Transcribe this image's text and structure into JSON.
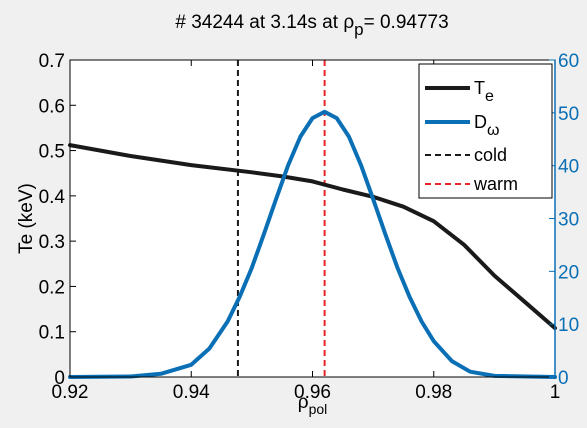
{
  "chart_data": {
    "type": "line",
    "title_parts": {
      "prefix": "# 34244 at 3.14s at  ",
      "symbol": "ρ",
      "sub": "p",
      "suffix": "= 0.94773"
    },
    "xlabel": {
      "symbol": "ρ",
      "sub": "pol"
    },
    "ylabel_left": "Te (keV)",
    "xlim": [
      0.92,
      1.0
    ],
    "ylim_left": [
      0,
      0.7
    ],
    "ylim_right": [
      0,
      60
    ],
    "xticks": [
      "0.92",
      "0.94",
      "0.96",
      "0.98",
      "1"
    ],
    "yticks_left": [
      "0",
      "0.1",
      "0.2",
      "0.3",
      "0.4",
      "0.5",
      "0.6",
      "0.7"
    ],
    "yticks_right": [
      "0",
      "10",
      "20",
      "30",
      "40",
      "50",
      "60"
    ],
    "colors": {
      "te": "#1a1a1a",
      "dw": "#0a6fb5",
      "cold": "#1a1a1a",
      "warm": "#e8262a",
      "right_axis": "#0a6fb5"
    },
    "legend_position": "top-right",
    "series": [
      {
        "key": "te",
        "name": "T",
        "name_sub": "e",
        "axis": "left",
        "x": [
          0.92,
          0.93,
          0.94,
          0.95,
          0.955,
          0.96,
          0.965,
          0.97,
          0.975,
          0.98,
          0.985,
          0.99,
          0.995,
          1.0
        ],
        "y": [
          0.512,
          0.488,
          0.468,
          0.452,
          0.443,
          0.432,
          0.414,
          0.398,
          0.376,
          0.344,
          0.292,
          0.224,
          0.166,
          0.108
        ]
      },
      {
        "key": "dw",
        "name": "D",
        "name_sub": "ω",
        "axis": "right",
        "x": [
          0.92,
          0.93,
          0.935,
          0.94,
          0.943,
          0.946,
          0.948,
          0.95,
          0.952,
          0.954,
          0.956,
          0.958,
          0.96,
          0.962,
          0.964,
          0.966,
          0.968,
          0.97,
          0.972,
          0.974,
          0.976,
          0.978,
          0.98,
          0.983,
          0.986,
          0.99,
          1.0
        ],
        "y": [
          0,
          0.1,
          0.6,
          2.3,
          5.4,
          10.5,
          15.2,
          20.7,
          27.1,
          33.7,
          40.1,
          45.5,
          49.0,
          50.2,
          49.0,
          45.5,
          40.1,
          33.7,
          27.1,
          20.7,
          15.2,
          10.5,
          6.8,
          3.0,
          1.0,
          0.2,
          0
        ]
      }
    ],
    "vlines": [
      {
        "key": "cold",
        "name": "cold",
        "x": 0.9477
      },
      {
        "key": "warm",
        "name": "warm",
        "x": 0.962
      }
    ]
  }
}
